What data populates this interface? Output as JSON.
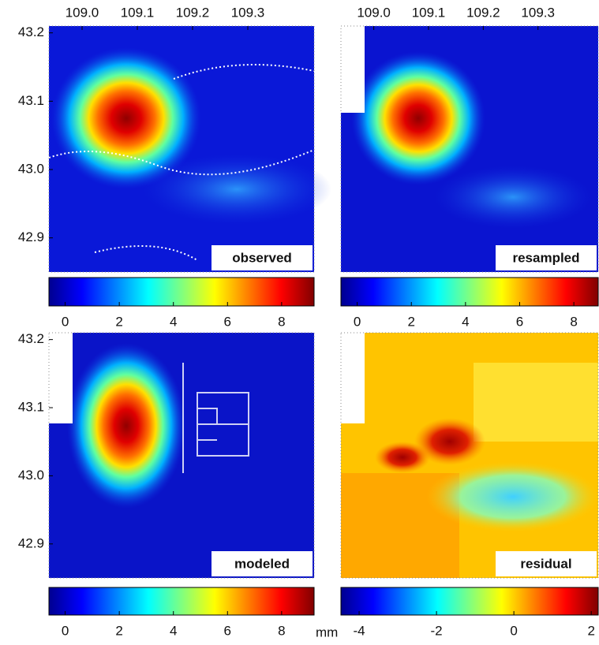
{
  "chart_data": [
    {
      "type": "heatmap",
      "label": "observed",
      "xlim": [
        108.94,
        109.42
      ],
      "ylim": [
        42.85,
        43.21
      ],
      "xticks": [
        {
          "value": 109,
          "label": "109.0"
        },
        109.1,
        109.2,
        109.3
      ],
      "yticks": [
        43.2,
        43.1,
        {
          "value": 43,
          "label": "43.0"
        },
        42.9
      ],
      "colorbar": {
        "lim": [
          -0.6,
          9.2
        ],
        "ticks": [
          0,
          2,
          4,
          6,
          8
        ]
      }
    },
    {
      "type": "heatmap",
      "label": "resampled",
      "xlim": [
        108.94,
        109.41
      ],
      "ylim": [
        42.85,
        43.21
      ],
      "xticks": [
        {
          "value": 109,
          "label": "109.0"
        },
        109.1,
        109.2,
        109.3
      ],
      "colorbar": {
        "lim": [
          -0.6,
          8.9
        ],
        "ticks": [
          0,
          2,
          4,
          6,
          8
        ]
      }
    },
    {
      "type": "heatmap",
      "label": "modeled",
      "xlim": [
        108.94,
        109.42
      ],
      "ylim": [
        42.85,
        43.21
      ],
      "yticks": [
        43.2,
        43.1,
        {
          "value": 43,
          "label": "43.0"
        },
        42.9
      ],
      "colorbar": {
        "lim": [
          -0.6,
          9.2
        ],
        "ticks": [
          0,
          2,
          4,
          6,
          8
        ],
        "unit": "mm"
      }
    },
    {
      "type": "heatmap",
      "label": "residual",
      "xlim": [
        108.94,
        109.41
      ],
      "ylim": [
        42.85,
        43.21
      ],
      "colorbar": {
        "lim": [
          -4.47,
          2.18
        ],
        "ticks": [
          -4,
          -2,
          0,
          2
        ]
      }
    }
  ]
}
